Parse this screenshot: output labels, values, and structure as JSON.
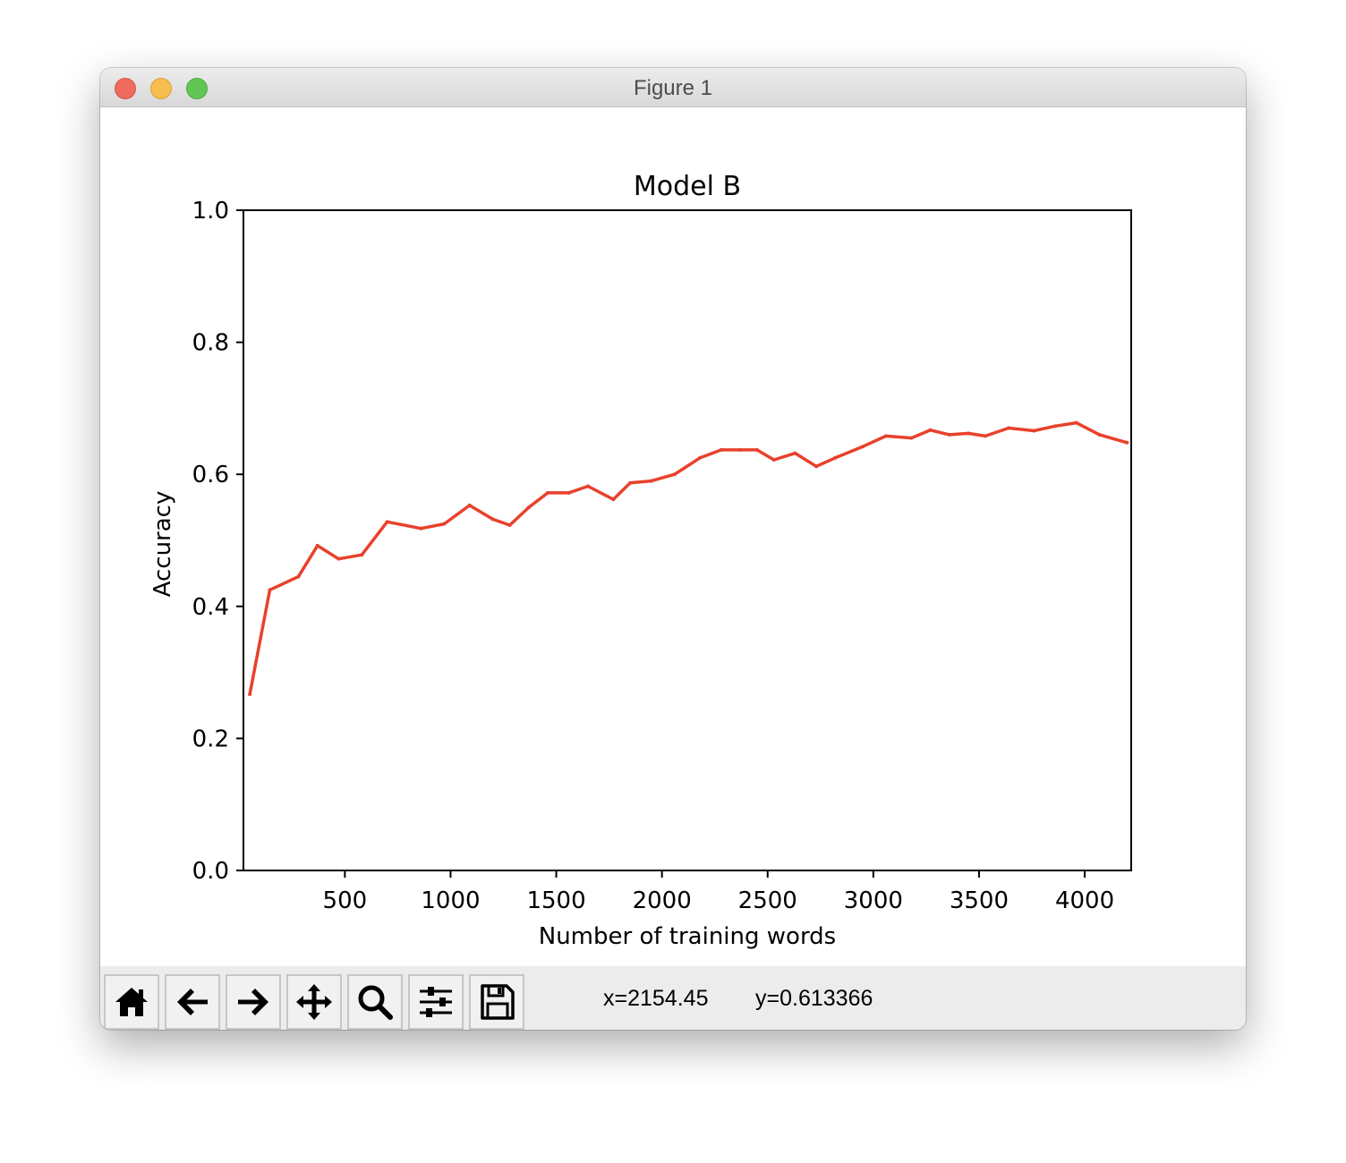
{
  "window": {
    "title": "Figure 1"
  },
  "toolbar": {
    "buttons": [
      {
        "name": "home-button",
        "icon": "home-icon"
      },
      {
        "name": "back-button",
        "icon": "arrow-left-icon"
      },
      {
        "name": "forward-button",
        "icon": "arrow-right-icon"
      },
      {
        "name": "pan-button",
        "icon": "move-icon"
      },
      {
        "name": "zoom-button",
        "icon": "magnifier-icon"
      },
      {
        "name": "configure-subplots-button",
        "icon": "sliders-icon"
      },
      {
        "name": "save-button",
        "icon": "floppy-disk-icon"
      }
    ],
    "x_readout": "x=2154.45",
    "y_readout": "y=0.613366"
  },
  "chart_data": {
    "type": "line",
    "title": "Model B",
    "xlabel": "Number of training words",
    "ylabel": "Accuracy",
    "xlim": [
      20,
      4220
    ],
    "ylim": [
      0.0,
      1.0
    ],
    "xticks": [
      500,
      1000,
      1500,
      2000,
      2500,
      3000,
      3500,
      4000
    ],
    "xtick_labels": [
      "500",
      "1000",
      "1500",
      "2000",
      "2500",
      "3000",
      "3500",
      "4000"
    ],
    "yticks": [
      0.0,
      0.2,
      0.4,
      0.6,
      0.8,
      1.0
    ],
    "ytick_labels": [
      "0.0",
      "0.2",
      "0.4",
      "0.6",
      "0.8",
      "1.0"
    ],
    "grid": false,
    "series": [
      {
        "color": "#e8412c",
        "x": [
          50,
          145,
          280,
          370,
          470,
          580,
          700,
          860,
          970,
          1090,
          1200,
          1280,
          1370,
          1460,
          1560,
          1650,
          1770,
          1850,
          1950,
          2060,
          2180,
          2280,
          2370,
          2450,
          2530,
          2630,
          2730,
          2820,
          2950,
          3060,
          3180,
          3270,
          3360,
          3450,
          3530,
          3640,
          3760,
          3860,
          3960,
          4070,
          4200
        ],
        "y": [
          0.267,
          0.425,
          0.445,
          0.492,
          0.472,
          0.478,
          0.528,
          0.518,
          0.525,
          0.553,
          0.532,
          0.523,
          0.55,
          0.572,
          0.572,
          0.582,
          0.562,
          0.587,
          0.59,
          0.6,
          0.625,
          0.637,
          0.637,
          0.637,
          0.622,
          0.632,
          0.612,
          0.625,
          0.642,
          0.658,
          0.655,
          0.667,
          0.66,
          0.662,
          0.658,
          0.67,
          0.666,
          0.673,
          0.678,
          0.66,
          0.648
        ]
      }
    ]
  }
}
